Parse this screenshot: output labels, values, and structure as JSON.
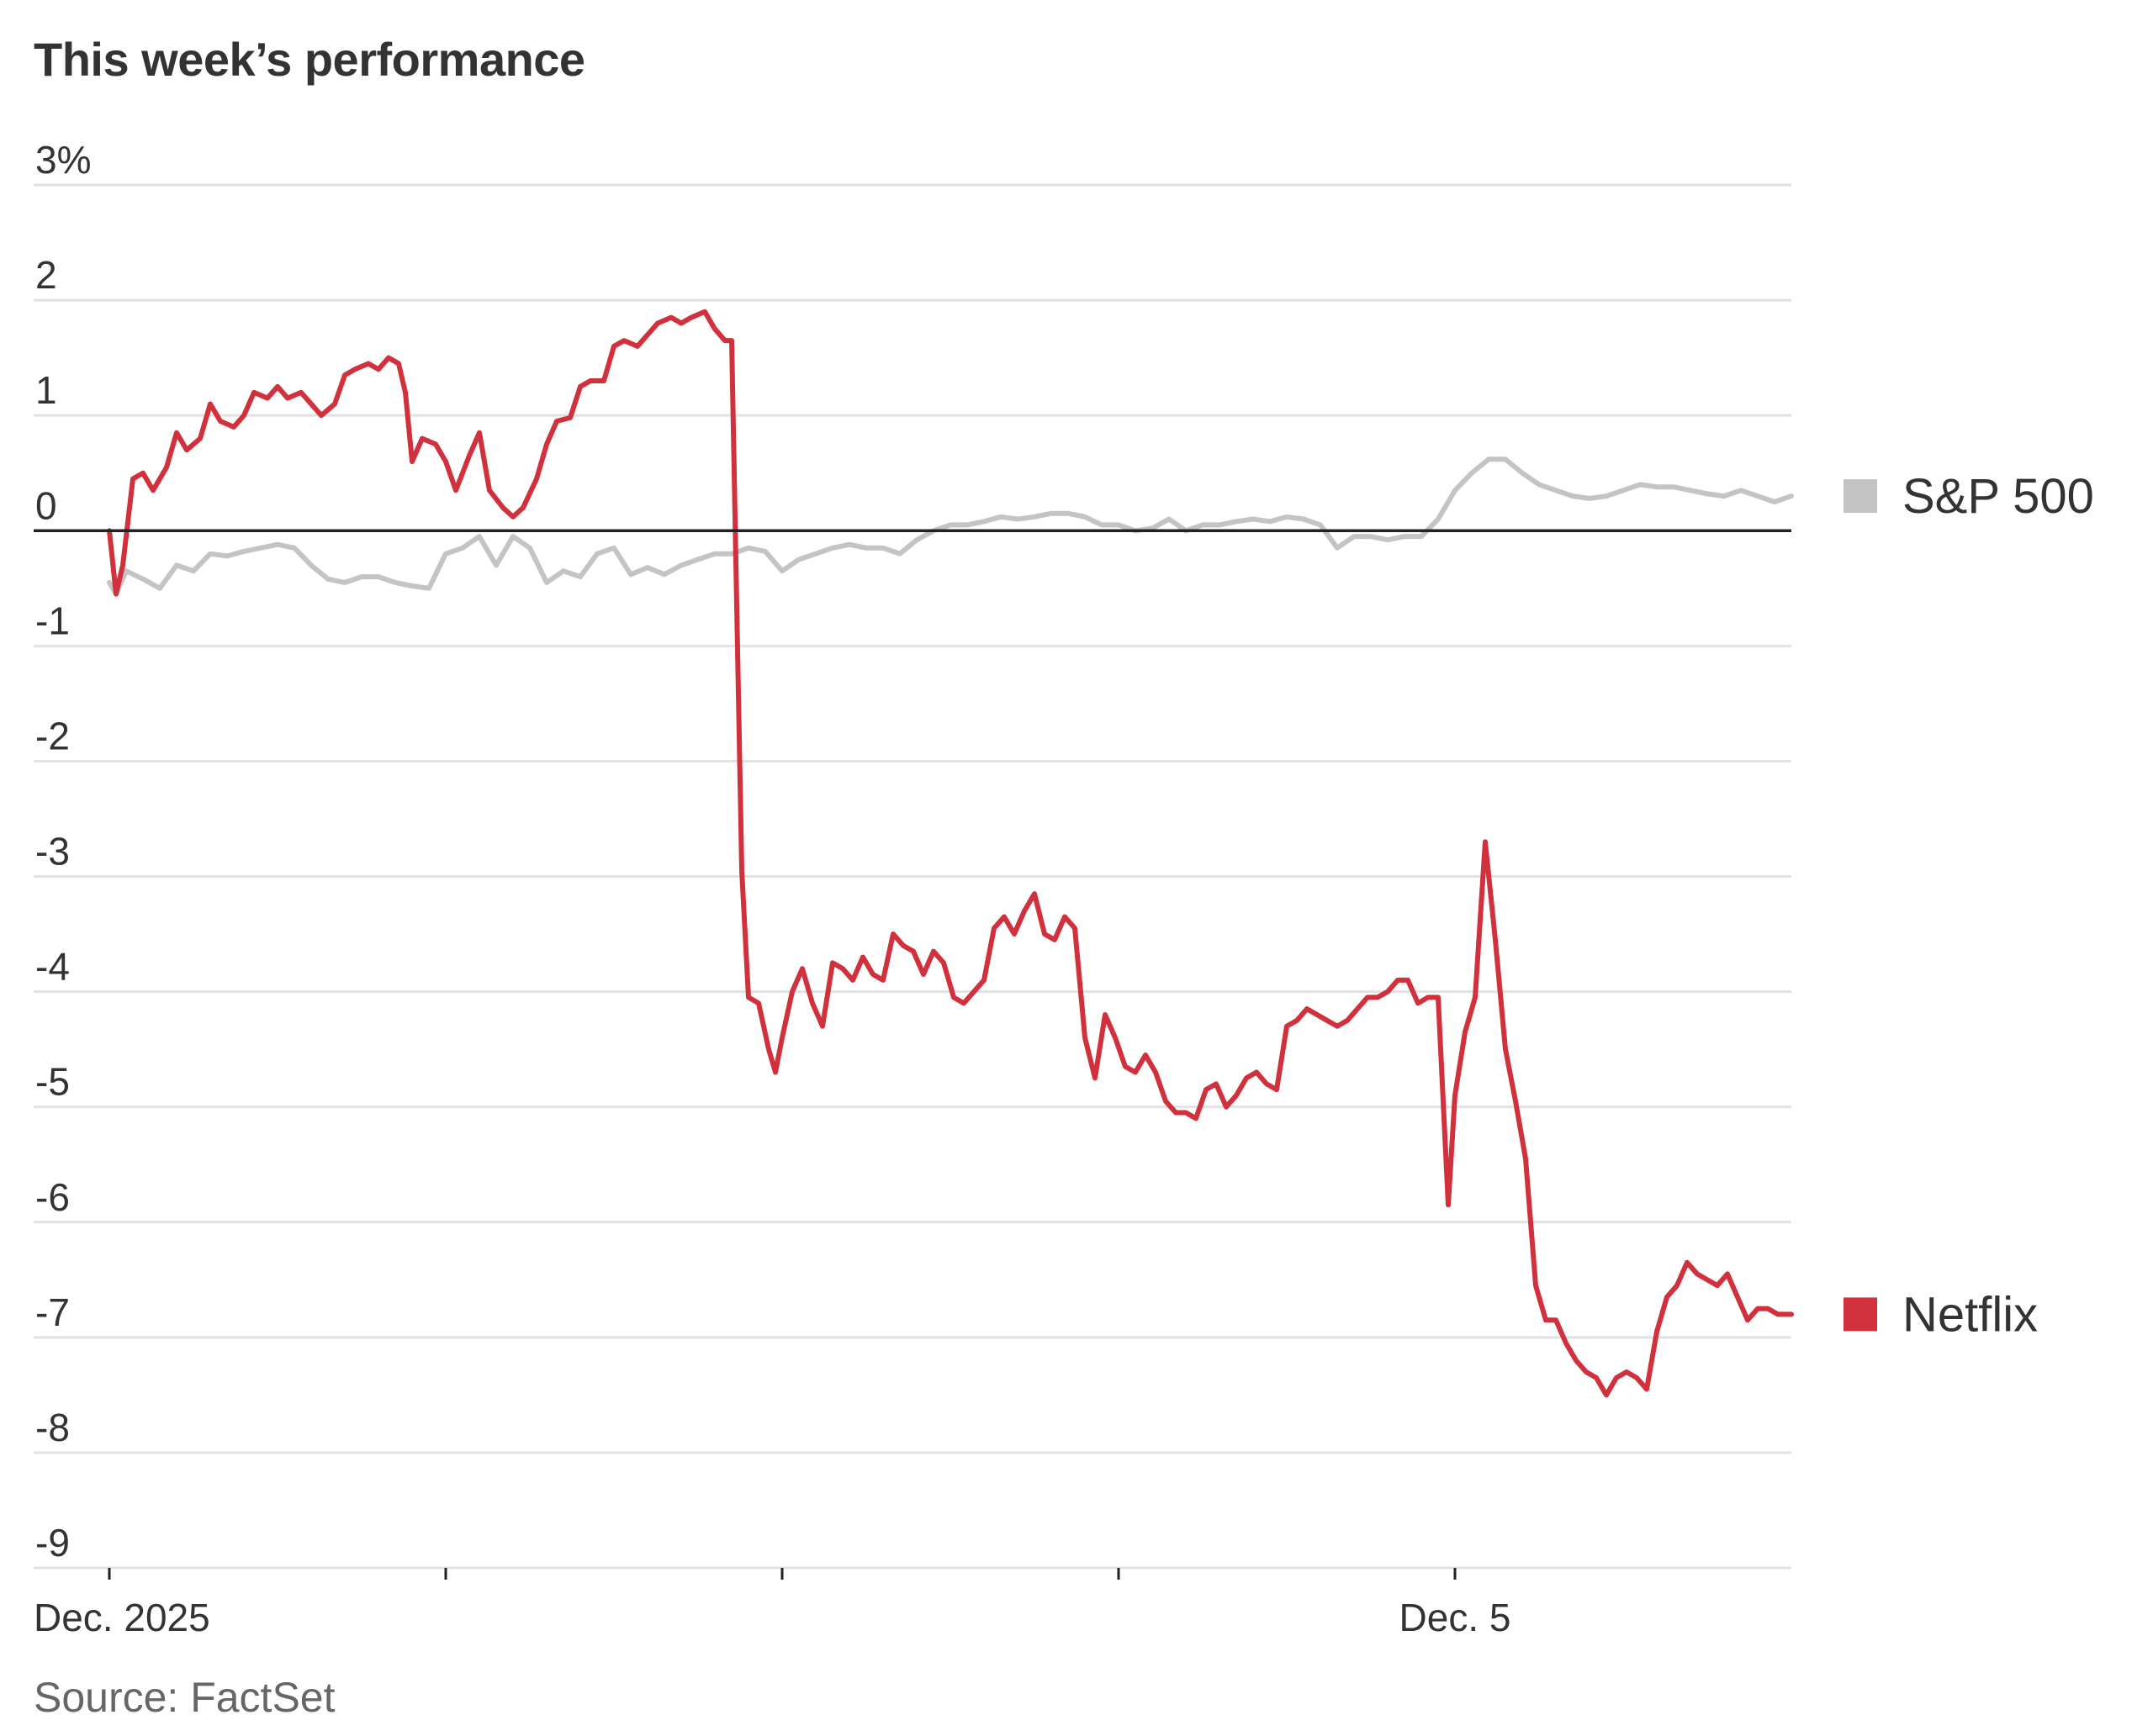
{
  "title": "This week’s performance",
  "source": "Source: FactSet",
  "colors": {
    "netflix": "#d1313d",
    "sp500": "#c4c4c4",
    "grid": "#e2e2e2",
    "zero_line": "#222222",
    "text": "#333333"
  },
  "chart_data": {
    "type": "line",
    "title": "This week’s performance",
    "xlabel": "",
    "ylabel": "",
    "y_unit": "%",
    "ylim": [
      -9,
      3
    ],
    "yticks": [
      3,
      2,
      1,
      0,
      -1,
      -2,
      -3,
      -4,
      -5,
      -6,
      -7,
      -8,
      -9
    ],
    "ytick_labels": [
      "3%",
      "2",
      "1",
      "0",
      "-1",
      "-2",
      "-3",
      "-4",
      "-5",
      "-6",
      "-7",
      "-8",
      "-9"
    ],
    "x_unit": "trading days since open Dec. 1",
    "xlim": [
      0,
      5
    ],
    "xticks": [
      0,
      1,
      2,
      3,
      4
    ],
    "xtick_labels": [
      "Dec. 2025",
      "",
      "",
      "",
      "Dec. 5"
    ],
    "grid": true,
    "legend": "right, at end of each series",
    "series": [
      {
        "name": "S&P 500",
        "color": "#c4c4c4",
        "points": [
          [
            0.0,
            -0.45
          ],
          [
            0.02,
            -0.55
          ],
          [
            0.05,
            -0.35
          ],
          [
            0.1,
            -0.42
          ],
          [
            0.15,
            -0.5
          ],
          [
            0.2,
            -0.3
          ],
          [
            0.25,
            -0.35
          ],
          [
            0.3,
            -0.2
          ],
          [
            0.35,
            -0.22
          ],
          [
            0.4,
            -0.18
          ],
          [
            0.45,
            -0.15
          ],
          [
            0.5,
            -0.12
          ],
          [
            0.55,
            -0.15
          ],
          [
            0.6,
            -0.3
          ],
          [
            0.65,
            -0.42
          ],
          [
            0.7,
            -0.45
          ],
          [
            0.75,
            -0.4
          ],
          [
            0.8,
            -0.4
          ],
          [
            0.85,
            -0.45
          ],
          [
            0.9,
            -0.48
          ],
          [
            0.95,
            -0.5
          ],
          [
            1.0,
            -0.2
          ],
          [
            1.05,
            -0.15
          ],
          [
            1.1,
            -0.05
          ],
          [
            1.15,
            -0.3
          ],
          [
            1.2,
            -0.05
          ],
          [
            1.25,
            -0.15
          ],
          [
            1.3,
            -0.45
          ],
          [
            1.35,
            -0.35
          ],
          [
            1.4,
            -0.4
          ],
          [
            1.45,
            -0.2
          ],
          [
            1.5,
            -0.15
          ],
          [
            1.55,
            -0.38
          ],
          [
            1.6,
            -0.32
          ],
          [
            1.65,
            -0.38
          ],
          [
            1.7,
            -0.3
          ],
          [
            1.75,
            -0.25
          ],
          [
            1.8,
            -0.2
          ],
          [
            1.85,
            -0.2
          ],
          [
            1.9,
            -0.15
          ],
          [
            1.95,
            -0.18
          ],
          [
            2.0,
            -0.35
          ],
          [
            2.05,
            -0.25
          ],
          [
            2.1,
            -0.2
          ],
          [
            2.15,
            -0.15
          ],
          [
            2.2,
            -0.12
          ],
          [
            2.25,
            -0.15
          ],
          [
            2.3,
            -0.15
          ],
          [
            2.35,
            -0.2
          ],
          [
            2.4,
            -0.08
          ],
          [
            2.45,
            0.0
          ],
          [
            2.5,
            0.05
          ],
          [
            2.55,
            0.05
          ],
          [
            2.6,
            0.08
          ],
          [
            2.65,
            0.12
          ],
          [
            2.7,
            0.1
          ],
          [
            2.75,
            0.12
          ],
          [
            2.8,
            0.15
          ],
          [
            2.85,
            0.15
          ],
          [
            2.9,
            0.12
          ],
          [
            2.95,
            0.05
          ],
          [
            3.0,
            0.05
          ],
          [
            3.05,
            0.0
          ],
          [
            3.1,
            0.02
          ],
          [
            3.15,
            0.1
          ],
          [
            3.2,
            0.0
          ],
          [
            3.25,
            0.05
          ],
          [
            3.3,
            0.05
          ],
          [
            3.35,
            0.08
          ],
          [
            3.4,
            0.1
          ],
          [
            3.45,
            0.08
          ],
          [
            3.5,
            0.12
          ],
          [
            3.55,
            0.1
          ],
          [
            3.6,
            0.05
          ],
          [
            3.65,
            -0.15
          ],
          [
            3.7,
            -0.05
          ],
          [
            3.75,
            -0.05
          ],
          [
            3.8,
            -0.08
          ],
          [
            3.85,
            -0.05
          ],
          [
            3.9,
            -0.05
          ],
          [
            3.95,
            0.1
          ],
          [
            4.0,
            0.35
          ],
          [
            4.05,
            0.5
          ],
          [
            4.1,
            0.62
          ],
          [
            4.15,
            0.62
          ],
          [
            4.2,
            0.5
          ],
          [
            4.25,
            0.4
          ],
          [
            4.3,
            0.35
          ],
          [
            4.35,
            0.3
          ],
          [
            4.4,
            0.28
          ],
          [
            4.45,
            0.3
          ],
          [
            4.5,
            0.35
          ],
          [
            4.55,
            0.4
          ],
          [
            4.6,
            0.38
          ],
          [
            4.65,
            0.38
          ],
          [
            4.7,
            0.35
          ],
          [
            4.75,
            0.32
          ],
          [
            4.8,
            0.3
          ],
          [
            4.85,
            0.35
          ],
          [
            4.9,
            0.3
          ],
          [
            4.95,
            0.25
          ],
          [
            5.0,
            0.3
          ]
        ]
      },
      {
        "name": "Netflix",
        "color": "#d1313d",
        "points": [
          [
            0.0,
            0.0
          ],
          [
            0.02,
            -0.55
          ],
          [
            0.04,
            -0.3
          ],
          [
            0.07,
            0.45
          ],
          [
            0.1,
            0.5
          ],
          [
            0.13,
            0.35
          ],
          [
            0.17,
            0.55
          ],
          [
            0.2,
            0.85
          ],
          [
            0.23,
            0.7
          ],
          [
            0.27,
            0.8
          ],
          [
            0.3,
            1.1
          ],
          [
            0.33,
            0.95
          ],
          [
            0.37,
            0.9
          ],
          [
            0.4,
            1.0
          ],
          [
            0.43,
            1.2
          ],
          [
            0.47,
            1.15
          ],
          [
            0.5,
            1.25
          ],
          [
            0.53,
            1.15
          ],
          [
            0.57,
            1.2
          ],
          [
            0.6,
            1.1
          ],
          [
            0.63,
            1.0
          ],
          [
            0.67,
            1.1
          ],
          [
            0.7,
            1.35
          ],
          [
            0.73,
            1.4
          ],
          [
            0.77,
            1.45
          ],
          [
            0.8,
            1.4
          ],
          [
            0.83,
            1.5
          ],
          [
            0.86,
            1.45
          ],
          [
            0.88,
            1.2
          ],
          [
            0.9,
            0.6
          ],
          [
            0.93,
            0.8
          ],
          [
            0.97,
            0.75
          ],
          [
            1.0,
            0.6
          ],
          [
            1.03,
            0.35
          ],
          [
            1.07,
            0.65
          ],
          [
            1.1,
            0.85
          ],
          [
            1.13,
            0.35
          ],
          [
            1.17,
            0.2
          ],
          [
            1.2,
            0.12
          ],
          [
            1.23,
            0.2
          ],
          [
            1.27,
            0.45
          ],
          [
            1.3,
            0.75
          ],
          [
            1.33,
            0.95
          ],
          [
            1.37,
            0.98
          ],
          [
            1.4,
            1.25
          ],
          [
            1.43,
            1.3
          ],
          [
            1.47,
            1.3
          ],
          [
            1.5,
            1.6
          ],
          [
            1.53,
            1.65
          ],
          [
            1.57,
            1.6
          ],
          [
            1.6,
            1.7
          ],
          [
            1.63,
            1.8
          ],
          [
            1.67,
            1.85
          ],
          [
            1.7,
            1.8
          ],
          [
            1.73,
            1.85
          ],
          [
            1.77,
            1.9
          ],
          [
            1.8,
            1.75
          ],
          [
            1.83,
            1.65
          ],
          [
            1.85,
            1.65
          ],
          [
            1.88,
            -2.95
          ],
          [
            1.9,
            -4.05
          ],
          [
            1.93,
            -4.1
          ],
          [
            1.96,
            -4.5
          ],
          [
            1.98,
            -4.7
          ],
          [
            2.0,
            -4.4
          ],
          [
            2.03,
            -4.0
          ],
          [
            2.06,
            -3.8
          ],
          [
            2.09,
            -4.1
          ],
          [
            2.12,
            -4.3
          ],
          [
            2.15,
            -3.75
          ],
          [
            2.18,
            -3.8
          ],
          [
            2.21,
            -3.9
          ],
          [
            2.24,
            -3.7
          ],
          [
            2.27,
            -3.85
          ],
          [
            2.3,
            -3.9
          ],
          [
            2.33,
            -3.5
          ],
          [
            2.36,
            -3.6
          ],
          [
            2.39,
            -3.65
          ],
          [
            2.42,
            -3.85
          ],
          [
            2.45,
            -3.65
          ],
          [
            2.48,
            -3.75
          ],
          [
            2.51,
            -4.05
          ],
          [
            2.54,
            -4.1
          ],
          [
            2.57,
            -4.0
          ],
          [
            2.6,
            -3.9
          ],
          [
            2.63,
            -3.45
          ],
          [
            2.66,
            -3.35
          ],
          [
            2.69,
            -3.5
          ],
          [
            2.72,
            -3.3
          ],
          [
            2.75,
            -3.15
          ],
          [
            2.78,
            -3.5
          ],
          [
            2.81,
            -3.55
          ],
          [
            2.84,
            -3.35
          ],
          [
            2.87,
            -3.45
          ],
          [
            2.9,
            -4.4
          ],
          [
            2.93,
            -4.75
          ],
          [
            2.96,
            -4.2
          ],
          [
            2.99,
            -4.4
          ],
          [
            3.02,
            -4.65
          ],
          [
            3.05,
            -4.7
          ],
          [
            3.08,
            -4.55
          ],
          [
            3.11,
            -4.7
          ],
          [
            3.14,
            -4.95
          ],
          [
            3.17,
            -5.05
          ],
          [
            3.2,
            -5.05
          ],
          [
            3.23,
            -5.1
          ],
          [
            3.26,
            -4.85
          ],
          [
            3.29,
            -4.8
          ],
          [
            3.32,
            -5.0
          ],
          [
            3.35,
            -4.9
          ],
          [
            3.38,
            -4.75
          ],
          [
            3.41,
            -4.7
          ],
          [
            3.44,
            -4.8
          ],
          [
            3.47,
            -4.85
          ],
          [
            3.5,
            -4.3
          ],
          [
            3.53,
            -4.25
          ],
          [
            3.56,
            -4.15
          ],
          [
            3.59,
            -4.2
          ],
          [
            3.62,
            -4.25
          ],
          [
            3.65,
            -4.3
          ],
          [
            3.68,
            -4.25
          ],
          [
            3.71,
            -4.15
          ],
          [
            3.74,
            -4.05
          ],
          [
            3.77,
            -4.05
          ],
          [
            3.8,
            -4.0
          ],
          [
            3.83,
            -3.9
          ],
          [
            3.86,
            -3.9
          ],
          [
            3.89,
            -4.1
          ],
          [
            3.92,
            -4.05
          ],
          [
            3.95,
            -4.05
          ],
          [
            3.98,
            -5.85
          ],
          [
            4.0,
            -4.9
          ],
          [
            4.03,
            -4.35
          ],
          [
            4.06,
            -4.05
          ],
          [
            4.09,
            -2.7
          ],
          [
            4.12,
            -3.55
          ],
          [
            4.15,
            -4.5
          ],
          [
            4.18,
            -4.95
          ],
          [
            4.21,
            -5.45
          ],
          [
            4.24,
            -6.55
          ],
          [
            4.27,
            -6.85
          ],
          [
            4.3,
            -6.85
          ],
          [
            4.33,
            -7.05
          ],
          [
            4.36,
            -7.2
          ],
          [
            4.39,
            -7.3
          ],
          [
            4.42,
            -7.35
          ],
          [
            4.45,
            -7.5
          ],
          [
            4.48,
            -7.35
          ],
          [
            4.51,
            -7.3
          ],
          [
            4.54,
            -7.35
          ],
          [
            4.57,
            -7.45
          ],
          [
            4.6,
            -6.95
          ],
          [
            4.63,
            -6.65
          ],
          [
            4.66,
            -6.55
          ],
          [
            4.69,
            -6.35
          ],
          [
            4.72,
            -6.45
          ],
          [
            4.75,
            -6.5
          ],
          [
            4.78,
            -6.55
          ],
          [
            4.81,
            -6.45
          ],
          [
            4.84,
            -6.65
          ],
          [
            4.87,
            -6.85
          ],
          [
            4.9,
            -6.75
          ],
          [
            4.93,
            -6.75
          ],
          [
            4.96,
            -6.8
          ],
          [
            5.0,
            -6.8
          ]
        ]
      }
    ]
  }
}
